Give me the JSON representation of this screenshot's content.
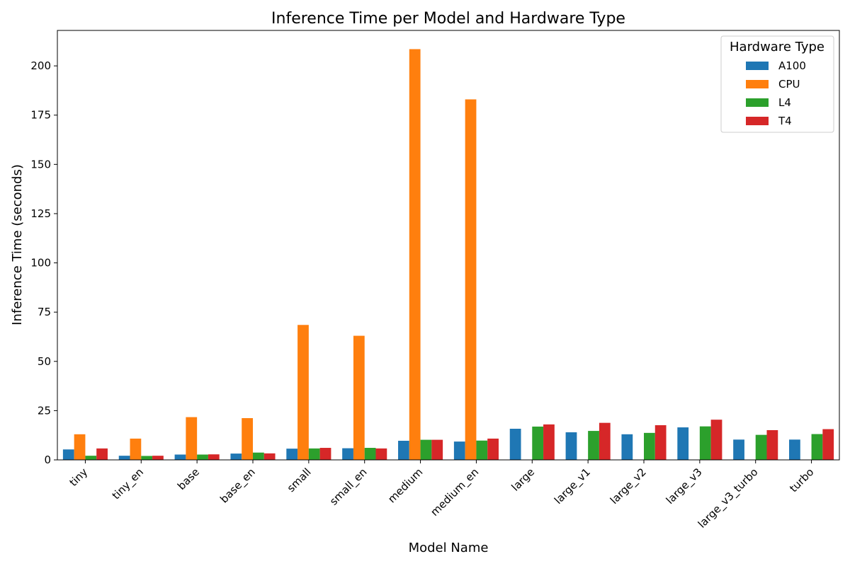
{
  "chart_data": {
    "type": "bar",
    "title": "Inference Time per Model and Hardware Type",
    "xlabel": "Model Name",
    "ylabel": "Inference Time (seconds)",
    "ylim": [
      0,
      218
    ],
    "yticks": [
      0,
      25,
      50,
      75,
      100,
      125,
      150,
      175,
      200
    ],
    "categories": [
      "tiny",
      "tiny_en",
      "base",
      "base_en",
      "small",
      "small_en",
      "medium",
      "medium_en",
      "large",
      "large_v1",
      "large_v2",
      "large_v3",
      "large_v3_turbo",
      "turbo"
    ],
    "series": [
      {
        "name": "A100",
        "color": "#1f77b4",
        "values": [
          5.3,
          2.1,
          2.7,
          3.2,
          5.7,
          5.9,
          9.7,
          9.3,
          15.8,
          14.0,
          13.0,
          16.5,
          10.3,
          10.3
        ]
      },
      {
        "name": "CPU",
        "color": "#ff7f0e",
        "values": [
          13.0,
          10.8,
          21.7,
          21.2,
          68.5,
          63.0,
          208.5,
          183.0,
          null,
          null,
          null,
          null,
          null,
          null
        ]
      },
      {
        "name": "L4",
        "color": "#2ca02c",
        "values": [
          2.1,
          2.0,
          2.7,
          3.7,
          5.8,
          6.1,
          10.2,
          9.8,
          16.9,
          14.7,
          13.7,
          17.0,
          12.7,
          13.1
        ]
      },
      {
        "name": "T4",
        "color": "#d62728",
        "values": [
          5.8,
          2.1,
          2.8,
          3.3,
          6.1,
          5.8,
          10.2,
          10.8,
          18.0,
          18.8,
          17.6,
          20.4,
          15.1,
          15.6
        ]
      }
    ],
    "legend": {
      "title": "Hardware Type",
      "position": "top-right"
    },
    "grid": false
  }
}
